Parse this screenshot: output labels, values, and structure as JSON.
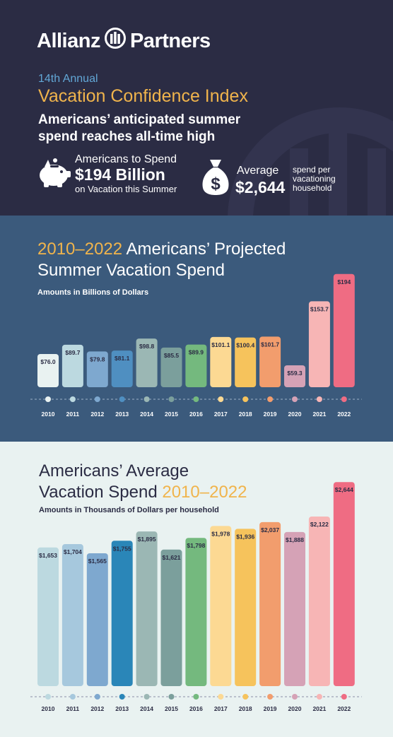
{
  "header": {
    "brand_left": "Allianz",
    "brand_right": "Partners",
    "annual": "14th Annual",
    "index_name": "Vacation Confidence Index",
    "headline_l1": "Americans’ anticipated summer",
    "headline_l2": "spend reaches all-time high",
    "total_l1": "Americans to Spend",
    "total_value": "$194 Billion",
    "total_l3": "on Vacation this Summer",
    "avg_label": "Average",
    "avg_value": "$2,644",
    "avg_note_l1": "spend per",
    "avg_note_l2": "vacationing",
    "avg_note_l3": "household",
    "colors": {
      "bg": "#2b2c44",
      "accent_gold": "#f0b44c",
      "accent_blue": "#62a7d6"
    }
  },
  "chart_data": [
    {
      "type": "bar",
      "title_years": "2010–2022",
      "title_rest": " Americans’ Projected",
      "title_l2": "Summer Vacation Spend",
      "subtitle": "Amounts in Billions of Dollars",
      "unit": "billion USD",
      "categories": [
        "2010",
        "2011",
        "2012",
        "2013",
        "2014",
        "2015",
        "2016",
        "2017",
        "2018",
        "2019",
        "2020",
        "2021",
        "2022"
      ],
      "values": [
        76.0,
        89.7,
        79.8,
        81.1,
        98.8,
        85.5,
        89.9,
        101.1,
        100.4,
        101.7,
        59.3,
        153.7,
        194
      ],
      "labels": [
        "$76.0",
        "$89.7",
        "$79.8",
        "$81.1",
        "$98.8",
        "$85.5",
        "$89.9",
        "$101.1",
        "$100.4",
        "$101.7",
        "$59.3",
        "$153.7",
        "$194"
      ],
      "colors": [
        "#e9f2f1",
        "#bcd9e0",
        "#7ea8cf",
        "#4f8fc1",
        "#9bb7b4",
        "#7b9f9c",
        "#74b97e",
        "#fcd993",
        "#f6c35c",
        "#f29d6d",
        "#d5a2b6",
        "#f7b5b5",
        "#ef6c83"
      ],
      "ylim": [
        0,
        200
      ]
    },
    {
      "type": "bar",
      "title_l1": "Americans’ Average",
      "title_l2_rest": "Vacation Spend ",
      "title_years": "2010–2022",
      "subtitle": "Amounts in Thousands of Dollars per household",
      "unit": "USD per household",
      "categories": [
        "2010",
        "2011",
        "2012",
        "2013",
        "2014",
        "2015",
        "2016",
        "2017",
        "2018",
        "2019",
        "2020",
        "2021",
        "2022"
      ],
      "values": [
        1653,
        1704,
        1565,
        1755,
        1895,
        1621,
        1798,
        1978,
        1936,
        2037,
        1888,
        2122,
        2644
      ],
      "labels": [
        "$1,653",
        "$1,704",
        "$1,565",
        "$1,755",
        "$1,895",
        "$1,621",
        "$1,798",
        "$1,978",
        "$1,936",
        "$2,037",
        "$1,888",
        "$2,122",
        "$2,644"
      ],
      "colors": [
        "#bcd9e0",
        "#a6c8dd",
        "#7ea8cf",
        "#2a86b8",
        "#9bb7b4",
        "#7b9f9c",
        "#74b97e",
        "#fcd993",
        "#f6c35c",
        "#f29d6d",
        "#d5a2b6",
        "#f7b5b5",
        "#ef6c83"
      ],
      "ylim": [
        0,
        2700
      ]
    }
  ]
}
